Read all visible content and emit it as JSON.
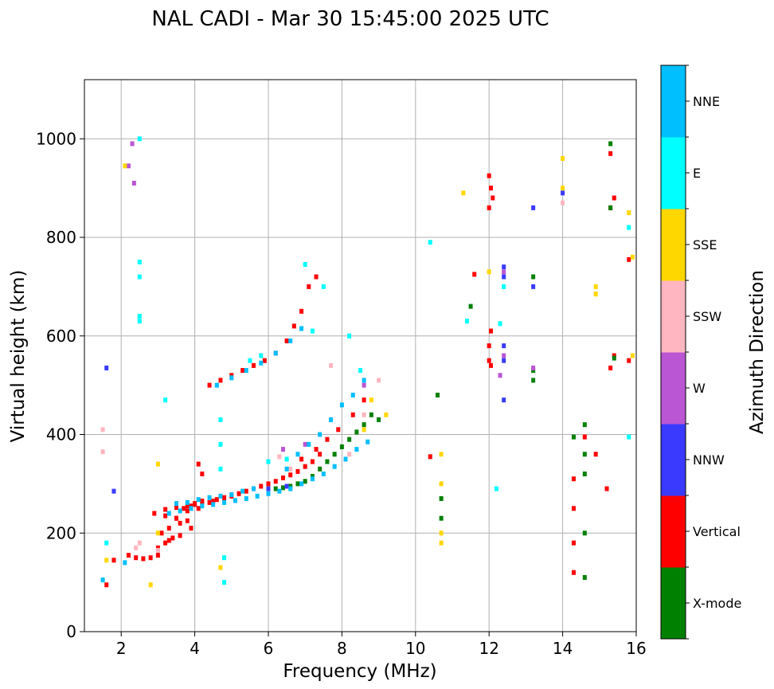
{
  "chart_data": {
    "type": "scatter",
    "title": "NAL CADI - Mar 30 15:45:00 2025 UTC",
    "xlabel": "Frequency (MHz)",
    "ylabel": "Virtual height (km)",
    "xlim": [
      1,
      16
    ],
    "ylim": [
      0,
      1120
    ],
    "xticks": [
      2,
      4,
      6,
      8,
      10,
      12,
      14,
      16
    ],
    "yticks": [
      0,
      200,
      400,
      600,
      800,
      1000
    ],
    "grid": true,
    "colorbar": {
      "label": "Azimuth Direction",
      "categories": [
        {
          "name": "X-mode",
          "color": "#008000"
        },
        {
          "name": "Vertical",
          "color": "#ff0000"
        },
        {
          "name": "NNW",
          "color": "#3a3aff"
        },
        {
          "name": "W",
          "color": "#ba55d3"
        },
        {
          "name": "SSW",
          "color": "#ffb6c1"
        },
        {
          "name": "SSE",
          "color": "#ffd700"
        },
        {
          "name": "E",
          "color": "#00ffff"
        },
        {
          "name": "NNE",
          "color": "#00bfff"
        }
      ]
    },
    "series": [
      {
        "name": "Vertical",
        "x": [
          1.6,
          1.8,
          2.2,
          2.4,
          2.6,
          2.8,
          3.0,
          3.1,
          3.2,
          3.3,
          3.4,
          3.5,
          3.6,
          3.7,
          3.8,
          3.9,
          4.0,
          4.1,
          4.2,
          4.4,
          4.6,
          4.8,
          5.0,
          5.2,
          5.4,
          5.6,
          5.8,
          6.0,
          6.2,
          6.4,
          6.6,
          6.8,
          7.0,
          7.2,
          7.4,
          3.2,
          3.5,
          3.8,
          4.0,
          4.2,
          4.5,
          4.8,
          4.4,
          4.7,
          5.0,
          5.3,
          5.6,
          5.9,
          6.2,
          6.5,
          6.7,
          6.9,
          7.1,
          7.3,
          3.0,
          3.3,
          3.6,
          3.9,
          2.9,
          3.2,
          3.5,
          3.8,
          4.2,
          4.1,
          6.9,
          7.3,
          7.6,
          7.9,
          8.3,
          8.6,
          10.4,
          11.6,
          12.0,
          12.05,
          12.1,
          12.0,
          12.05,
          12.0,
          12.0,
          12.05,
          14.3,
          14.3,
          14.3,
          14.3,
          14.6,
          14.9,
          15.3,
          15.4,
          15.3,
          15.3,
          15.4,
          15.8,
          15.8,
          15.2
        ],
        "y": [
          95,
          145,
          155,
          150,
          148,
          150,
          155,
          200,
          180,
          210,
          190,
          230,
          220,
          250,
          245,
          255,
          260,
          250,
          265,
          262,
          268,
          272,
          275,
          280,
          285,
          290,
          295,
          300,
          305,
          312,
          318,
          325,
          335,
          345,
          360,
          248,
          252,
          255,
          258,
          262,
          265,
          270,
          500,
          510,
          520,
          530,
          540,
          550,
          565,
          590,
          620,
          650,
          700,
          720,
          170,
          185,
          195,
          210,
          240,
          235,
          230,
          225,
          320,
          340,
          350,
          370,
          390,
          410,
          440,
          470,
          355,
          725,
          925,
          900,
          880,
          860,
          610,
          580,
          550,
          540,
          310,
          250,
          180,
          120,
          395,
          360,
          970,
          880,
          860,
          535,
          560,
          550,
          755,
          290
        ]
      },
      {
        "name": "X-mode",
        "x": [
          6.2,
          6.4,
          6.6,
          6.8,
          7.0,
          7.2,
          7.4,
          7.6,
          7.8,
          8.0,
          8.2,
          8.4,
          8.6,
          8.8,
          9.0,
          10.6,
          10.7,
          10.7,
          11.5,
          13.2,
          13.2,
          13.2,
          14.3,
          14.6,
          14.6,
          14.6,
          14.6,
          14.6,
          15.3,
          15.3,
          15.4
        ],
        "y": [
          290,
          292,
          295,
          300,
          305,
          315,
          330,
          345,
          360,
          375,
          390,
          405,
          420,
          440,
          430,
          480,
          270,
          230,
          660,
          720,
          530,
          510,
          395,
          420,
          360,
          320,
          200,
          110,
          990,
          860,
          555
        ]
      },
      {
        "name": "NNW",
        "x": [
          1.6,
          1.8,
          12.4,
          12.4,
          12.4,
          13.2,
          13.2,
          14.0,
          12.4,
          12.4,
          6.0,
          6.5
        ],
        "y": [
          535,
          285,
          720,
          550,
          470,
          860,
          700,
          890,
          740,
          580,
          290,
          295
        ]
      },
      {
        "name": "W",
        "x": [
          2.2,
          2.3,
          2.35,
          12.4,
          12.4,
          13.2,
          6.4,
          7.0,
          8.6,
          12.3
        ],
        "y": [
          945,
          990,
          910,
          560,
          730,
          535,
          370,
          380,
          500,
          520
        ]
      },
      {
        "name": "SSW",
        "x": [
          1.5,
          1.5,
          2.4,
          2.5,
          3.0,
          6.3,
          6.6,
          7.7,
          8.2,
          8.6,
          9.0,
          14.0
        ],
        "y": [
          410,
          365,
          170,
          180,
          165,
          355,
          330,
          540,
          360,
          440,
          510,
          870
        ]
      },
      {
        "name": "SSE",
        "x": [
          1.6,
          2.1,
          2.8,
          3.0,
          3.0,
          4.7,
          8.6,
          8.8,
          9.2,
          10.7,
          10.7,
          10.7,
          10.7,
          11.3,
          14.0,
          14.0,
          14.9,
          14.9,
          15.8,
          15.9,
          15.9,
          2.5,
          12.0
        ],
        "y": [
          145,
          945,
          95,
          200,
          340,
          130,
          410,
          470,
          440,
          360,
          300,
          200,
          180,
          890,
          960,
          900,
          700,
          685,
          850,
          560,
          760,
          640,
          730
        ]
      },
      {
        "name": "E",
        "x": [
          1.6,
          2.5,
          2.5,
          2.5,
          2.5,
          2.5,
          3.2,
          4.7,
          4.7,
          4.7,
          4.8,
          4.8,
          6.0,
          6.5,
          7.0,
          7.2,
          7.5,
          8.2,
          8.5,
          10.4,
          12.2,
          12.3,
          12.4,
          15.8,
          15.8,
          11.4,
          5.5,
          5.8
        ],
        "y": [
          180,
          1000,
          750,
          720,
          640,
          630,
          470,
          430,
          380,
          330,
          150,
          100,
          345,
          350,
          745,
          610,
          700,
          600,
          530,
          790,
          290,
          625,
          700,
          820,
          395,
          630,
          550,
          560
        ]
      },
      {
        "name": "NNE",
        "x": [
          1.5,
          2.1,
          3.3,
          3.6,
          3.9,
          4.2,
          4.5,
          4.8,
          5.1,
          5.4,
          5.7,
          6.0,
          6.3,
          6.6,
          6.9,
          7.2,
          7.5,
          7.8,
          8.1,
          8.4,
          8.7,
          4.6,
          5.0,
          5.4,
          5.8,
          6.2,
          6.6,
          6.9,
          3.5,
          3.8,
          4.1,
          4.4,
          4.7,
          5.0,
          5.3,
          5.6,
          6.5,
          6.8,
          7.1,
          7.4,
          7.7,
          8.0,
          8.3,
          8.6
        ],
        "y": [
          105,
          140,
          240,
          245,
          250,
          255,
          258,
          262,
          266,
          270,
          275,
          280,
          285,
          290,
          300,
          310,
          320,
          335,
          350,
          370,
          385,
          500,
          515,
          530,
          545,
          565,
          590,
          615,
          260,
          262,
          268,
          272,
          275,
          278,
          285,
          290,
          330,
          360,
          380,
          400,
          430,
          460,
          480,
          510
        ]
      }
    ]
  }
}
